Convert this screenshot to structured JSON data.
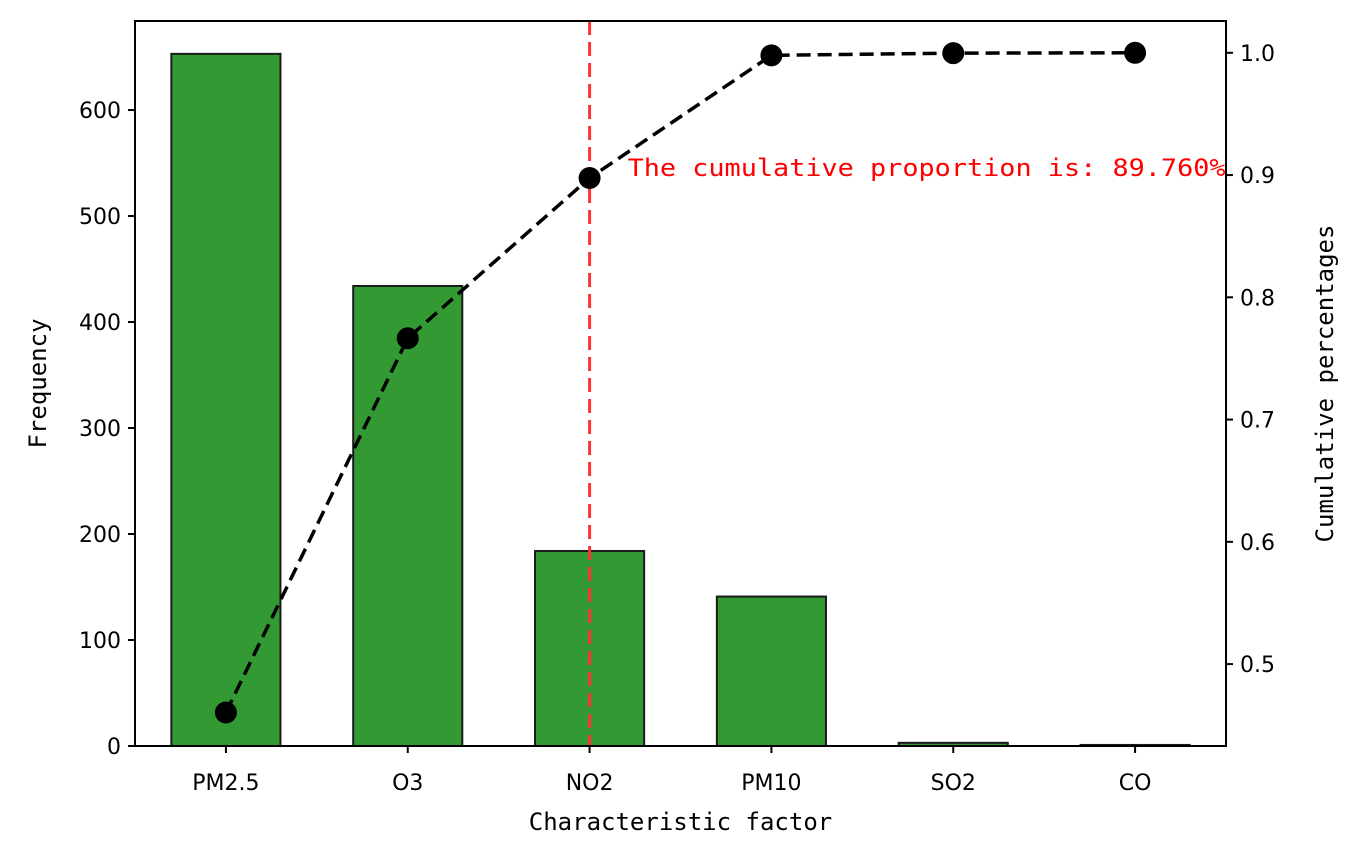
{
  "chart_data": {
    "type": "bar",
    "categories": [
      "PM2.5",
      "O3",
      "NO2",
      "PM10",
      "SO2",
      "CO"
    ],
    "series": [
      {
        "type": "bar",
        "axis": "left",
        "values": [
          653,
          434,
          184,
          141,
          3,
          1
        ],
        "color": "#339933"
      },
      {
        "type": "line",
        "axis": "right",
        "values": [
          0.4604,
          0.7665,
          0.8976,
          0.9979,
          0.9997,
          1.0
        ],
        "color": "#000000"
      }
    ],
    "xlabel": "Characteristic factor",
    "ylabel": "Frequency",
    "y2label": "Cumulative percentages",
    "ylim": [
      0,
      684
    ],
    "y2lim": [
      0.433,
      1.026
    ],
    "yticks": [
      "0",
      "100",
      "200",
      "300",
      "400",
      "500",
      "600"
    ],
    "y2ticks": [
      "0.5",
      "0.6",
      "0.7",
      "0.8",
      "0.9",
      "1.0"
    ],
    "threshold_category": "NO2",
    "threshold_color": "#ff3333",
    "annotation": "The cumulative proportion is: 89.760%",
    "grid": false
  }
}
